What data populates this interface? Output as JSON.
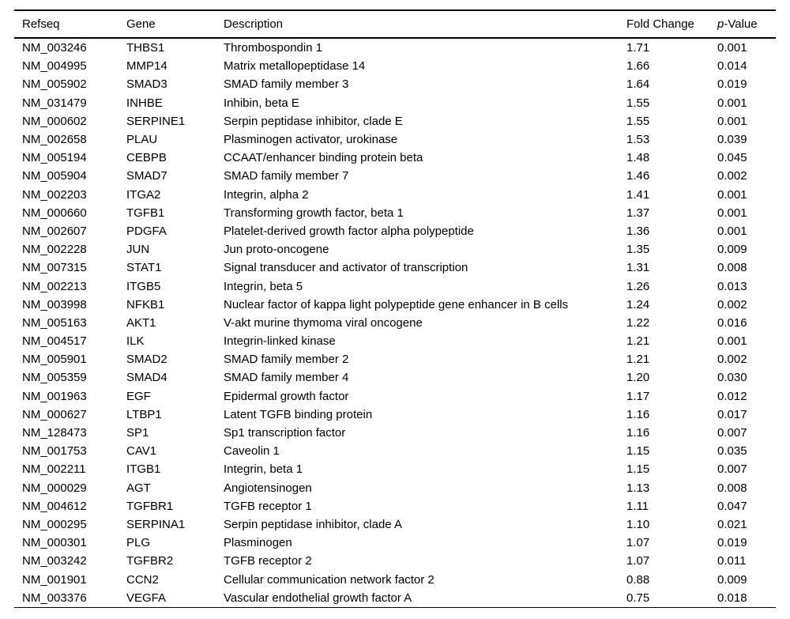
{
  "colors": {
    "background": "#ffffff",
    "text": "#000000",
    "rule": "#000000"
  },
  "table": {
    "columns": [
      {
        "key": "refseq",
        "label": "Refseq"
      },
      {
        "key": "gene",
        "label": "Gene"
      },
      {
        "key": "description",
        "label": "Description"
      },
      {
        "key": "fold_change",
        "label": "Fold Change"
      },
      {
        "key": "p_value",
        "label_italic": "p",
        "label": "-Value"
      }
    ],
    "rows": [
      {
        "refseq": "NM_003246",
        "gene": "THBS1",
        "description": "Thrombospondin 1",
        "fold_change": "1.71",
        "p_value": "0.001"
      },
      {
        "refseq": "NM_004995",
        "gene": "MMP14",
        "description": "Matrix metallopeptidase 14",
        "fold_change": "1.66",
        "p_value": "0.014"
      },
      {
        "refseq": "NM_005902",
        "gene": "SMAD3",
        "description": "SMAD family member 3",
        "fold_change": "1.64",
        "p_value": "0.019"
      },
      {
        "refseq": "NM_031479",
        "gene": "INHBE",
        "description": "Inhibin, beta E",
        "fold_change": "1.55",
        "p_value": "0.001"
      },
      {
        "refseq": "NM_000602",
        "gene": "SERPINE1",
        "description": "Serpin peptidase inhibitor, clade E",
        "fold_change": "1.55",
        "p_value": "0.001"
      },
      {
        "refseq": "NM_002658",
        "gene": "PLAU",
        "description": "Plasminogen activator, urokinase",
        "fold_change": "1.53",
        "p_value": "0.039"
      },
      {
        "refseq": "NM_005194",
        "gene": "CEBPB",
        "description": "CCAAT/enhancer binding protein beta",
        "fold_change": "1.48",
        "p_value": "0.045"
      },
      {
        "refseq": "NM_005904",
        "gene": "SMAD7",
        "description": "SMAD family member 7",
        "fold_change": "1.46",
        "p_value": "0.002"
      },
      {
        "refseq": "NM_002203",
        "gene": "ITGA2",
        "description": "Integrin, alpha 2",
        "fold_change": "1.41",
        "p_value": "0.001"
      },
      {
        "refseq": "NM_000660",
        "gene": "TGFB1",
        "description": "Transforming growth factor, beta 1",
        "fold_change": "1.37",
        "p_value": "0.001"
      },
      {
        "refseq": "NM_002607",
        "gene": "PDGFA",
        "description": "Platelet-derived growth factor alpha polypeptide",
        "fold_change": "1.36",
        "p_value": "0.001"
      },
      {
        "refseq": "NM_002228",
        "gene": "JUN",
        "description": "Jun proto-oncogene",
        "fold_change": "1.35",
        "p_value": "0.009"
      },
      {
        "refseq": "NM_007315",
        "gene": "STAT1",
        "description": "Signal transducer and activator of transcription",
        "fold_change": "1.31",
        "p_value": "0.008"
      },
      {
        "refseq": "NM_002213",
        "gene": "ITGB5",
        "description": "Integrin, beta 5",
        "fold_change": "1.26",
        "p_value": "0.013"
      },
      {
        "refseq": "NM_003998",
        "gene": "NFKB1",
        "description": "Nuclear factor of kappa light polypeptide gene enhancer in B cells",
        "fold_change": "1.24",
        "p_value": "0.002"
      },
      {
        "refseq": "NM_005163",
        "gene": "AKT1",
        "description": "V-akt murine thymoma viral oncogene",
        "fold_change": "1.22",
        "p_value": "0.016"
      },
      {
        "refseq": "NM_004517",
        "gene": "ILK",
        "description": "Integrin-linked kinase",
        "fold_change": "1.21",
        "p_value": "0.001"
      },
      {
        "refseq": "NM_005901",
        "gene": "SMAD2",
        "description": "SMAD family member 2",
        "fold_change": "1.21",
        "p_value": "0.002"
      },
      {
        "refseq": "NM_005359",
        "gene": "SMAD4",
        "description": "SMAD family member 4",
        "fold_change": "1.20",
        "p_value": "0.030"
      },
      {
        "refseq": "NM_001963",
        "gene": "EGF",
        "description": "Epidermal growth factor",
        "fold_change": "1.17",
        "p_value": "0.012"
      },
      {
        "refseq": "NM_000627",
        "gene": "LTBP1",
        "description": "Latent TGFB binding protein",
        "fold_change": "1.16",
        "p_value": "0.017"
      },
      {
        "refseq": "NM_128473",
        "gene": "SP1",
        "description": "Sp1 transcription factor",
        "fold_change": "1.16",
        "p_value": "0.007"
      },
      {
        "refseq": "NM_001753",
        "gene": "CAV1",
        "description": "Caveolin 1",
        "fold_change": "1.15",
        "p_value": "0.035"
      },
      {
        "refseq": "NM_002211",
        "gene": "ITGB1",
        "description": "Integrin, beta 1",
        "fold_change": "1.15",
        "p_value": "0.007"
      },
      {
        "refseq": "NM_000029",
        "gene": "AGT",
        "description": "Angiotensinogen",
        "fold_change": "1.13",
        "p_value": "0.008"
      },
      {
        "refseq": "NM_004612",
        "gene": "TGFBR1",
        "description": "TGFB receptor 1",
        "fold_change": "1.11",
        "p_value": "0.047"
      },
      {
        "refseq": "NM_000295",
        "gene": "SERPINA1",
        "description": "Serpin peptidase inhibitor, clade A",
        "fold_change": "1.10",
        "p_value": "0.021"
      },
      {
        "refseq": "NM_000301",
        "gene": "PLG",
        "description": "Plasminogen",
        "fold_change": "1.07",
        "p_value": "0.019"
      },
      {
        "refseq": "NM_003242",
        "gene": "TGFBR2",
        "description": "TGFB receptor 2",
        "fold_change": "1.07",
        "p_value": "0.011"
      },
      {
        "refseq": "NM_001901",
        "gene": "CCN2",
        "description": "Cellular communication network factor 2",
        "fold_change": "0.88",
        "p_value": "0.009"
      },
      {
        "refseq": "NM_003376",
        "gene": "VEGFA",
        "description": "Vascular endothelial growth factor A",
        "fold_change": "0.75",
        "p_value": "0.018"
      }
    ]
  }
}
